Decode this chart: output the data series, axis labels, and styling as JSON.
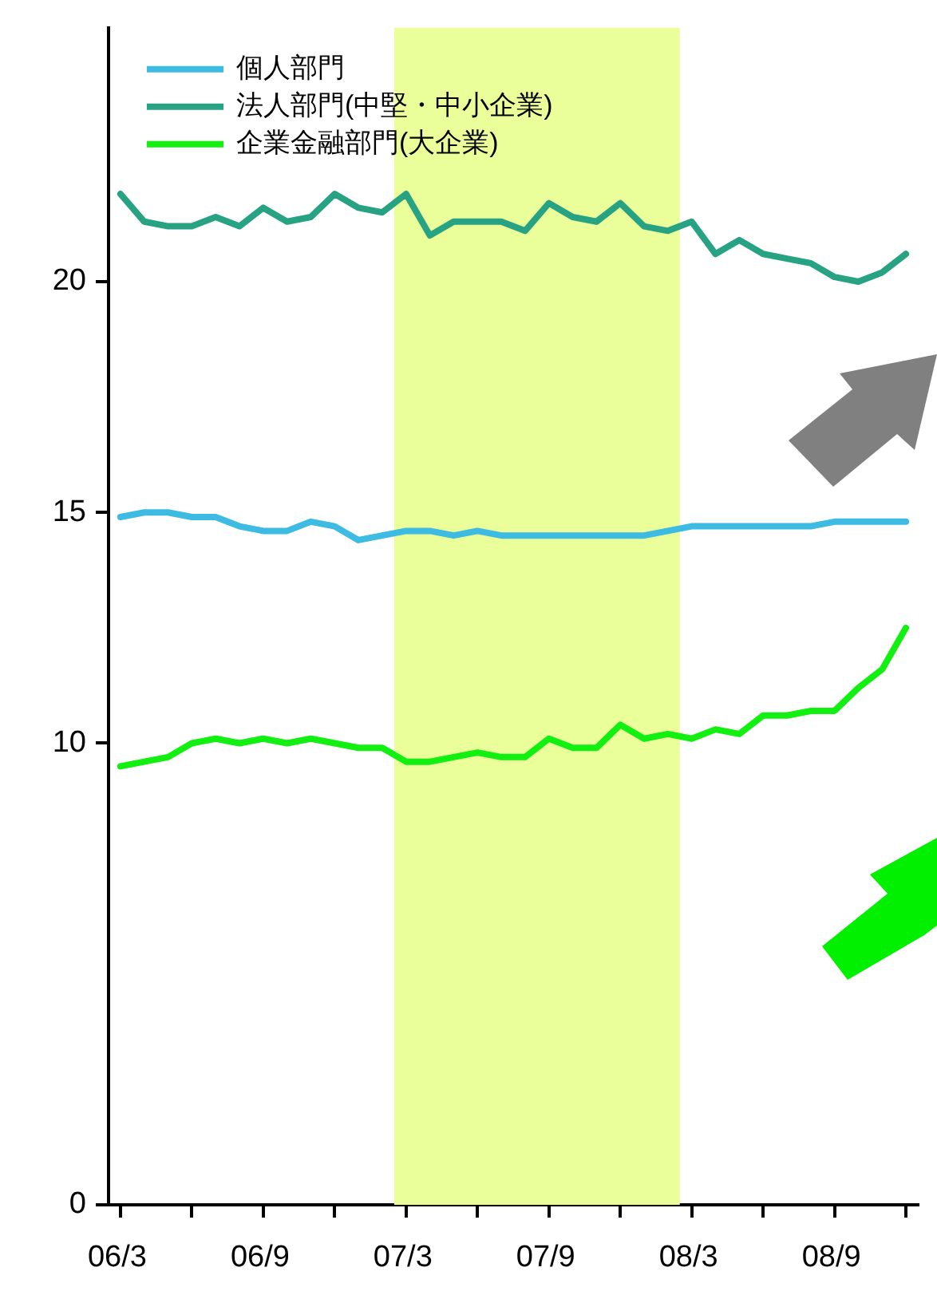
{
  "chart_data": {
    "type": "line",
    "categories": [
      "06/3",
      null,
      null,
      null,
      null,
      null,
      "06/9",
      null,
      null,
      null,
      null,
      null,
      "07/3",
      null,
      null,
      null,
      null,
      null,
      "07/9",
      null,
      null,
      null,
      null,
      null,
      "08/3",
      null,
      null,
      null,
      null,
      null,
      "08/9",
      null,
      null,
      null
    ],
    "series": [
      {
        "name": "個人部門",
        "color": "#3dbbe3",
        "values": [
          14.9,
          15.0,
          15.0,
          14.9,
          14.9,
          14.7,
          14.6,
          14.6,
          14.8,
          14.7,
          14.4,
          14.5,
          14.6,
          14.6,
          14.5,
          14.6,
          14.5,
          14.5,
          14.5,
          14.5,
          14.5,
          14.5,
          14.5,
          14.6,
          14.7,
          14.7,
          14.7,
          14.7,
          14.7,
          14.7,
          14.8,
          14.8,
          14.8,
          14.8
        ]
      },
      {
        "name": "法人部門(中堅・中小企業)",
        "color": "#27a383",
        "values": [
          21.9,
          21.3,
          21.2,
          21.2,
          21.4,
          21.2,
          21.6,
          21.3,
          21.4,
          21.9,
          21.6,
          21.5,
          21.9,
          21.0,
          21.3,
          21.3,
          21.3,
          21.1,
          21.7,
          21.4,
          21.3,
          21.7,
          21.2,
          21.1,
          21.3,
          20.6,
          20.9,
          20.6,
          20.5,
          20.4,
          20.1,
          20.0,
          20.2,
          20.6
        ]
      },
      {
        "name": "企業金融部門(大企業)",
        "color": "#11f011",
        "values": [
          9.5,
          9.6,
          9.7,
          10.0,
          10.1,
          10.0,
          10.1,
          10.0,
          10.1,
          10.0,
          9.9,
          9.9,
          9.6,
          9.6,
          9.7,
          9.8,
          9.7,
          9.7,
          10.1,
          9.9,
          9.9,
          10.4,
          10.1,
          10.2,
          10.1,
          10.3,
          10.2,
          10.6,
          10.6,
          10.7,
          10.7,
          11.2,
          11.6,
          12.5
        ]
      }
    ],
    "ylim": [
      0,
      25.5
    ],
    "yticks": [
      0,
      10,
      15,
      20
    ],
    "bands": [
      {
        "axis": "x",
        "from": "07/3",
        "to": "08/3",
        "color": "#eaff99"
      }
    ],
    "legend": "top left",
    "marker": "none",
    "line_style": "solid"
  }
}
